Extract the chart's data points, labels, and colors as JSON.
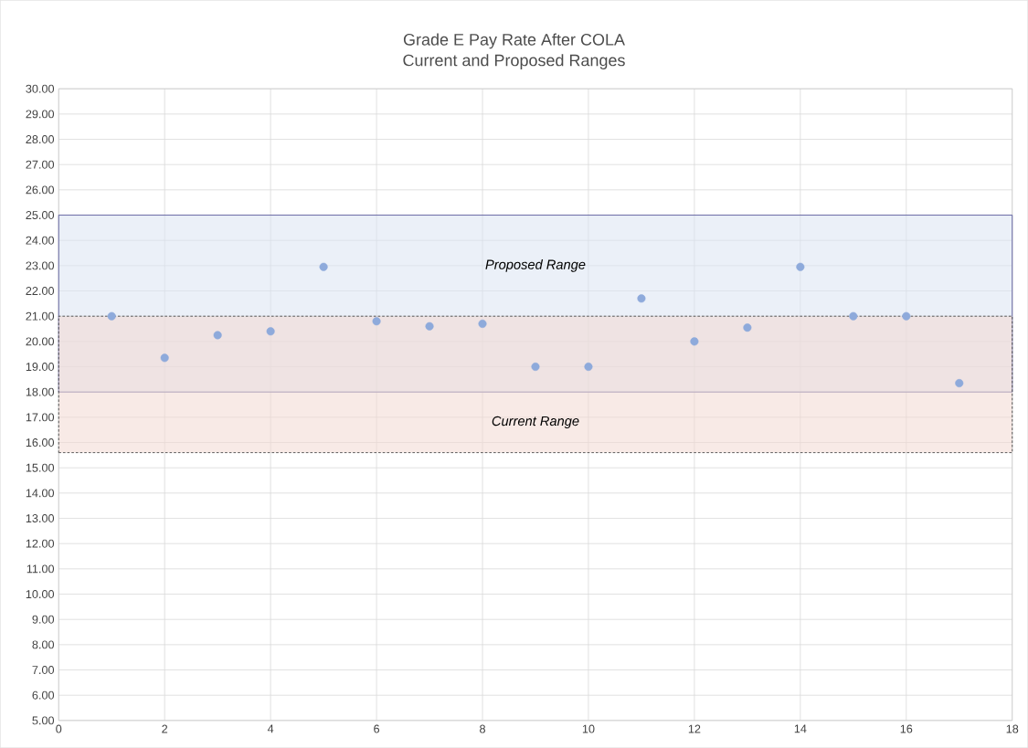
{
  "chart_data": {
    "type": "scatter",
    "title": "Grade E Pay Rate After COLA",
    "subtitle": "Current and Proposed Ranges",
    "x": [
      1,
      2,
      3,
      4,
      5,
      6,
      7,
      8,
      9,
      10,
      11,
      12,
      13,
      14,
      15,
      16,
      17
    ],
    "values": [
      21.0,
      19.35,
      20.25,
      20.4,
      22.95,
      20.8,
      20.6,
      20.7,
      19.0,
      19.0,
      21.7,
      20.0,
      20.55,
      22.95,
      21.0,
      21.0,
      18.35
    ],
    "color": "#8eaadb",
    "marker": "circle",
    "xlim": [
      0,
      18
    ],
    "ylim": [
      5,
      30
    ],
    "xticks": [
      0,
      2,
      4,
      6,
      8,
      10,
      12,
      14,
      16,
      18
    ],
    "yticks": [
      {
        "value": 5,
        "label": "5.00"
      },
      {
        "value": 6,
        "label": "6.00"
      },
      {
        "value": 7,
        "label": "7.00"
      },
      {
        "value": 8,
        "label": "8.00"
      },
      {
        "value": 9,
        "label": "9.00"
      },
      {
        "value": 10,
        "label": "10.00"
      },
      {
        "value": 11,
        "label": "11.00"
      },
      {
        "value": 12,
        "label": "12.00"
      },
      {
        "value": 13,
        "label": "13.00"
      },
      {
        "value": 14,
        "label": "14.00"
      },
      {
        "value": 15,
        "label": "15.00"
      },
      {
        "value": 16,
        "label": "16.00"
      },
      {
        "value": 17,
        "label": "17.00"
      },
      {
        "value": 18,
        "label": "18.00"
      },
      {
        "value": 19,
        "label": "19.00"
      },
      {
        "value": 20,
        "label": "20.00"
      },
      {
        "value": 21,
        "label": "21.00"
      },
      {
        "value": 22,
        "label": "22.00"
      },
      {
        "value": 23,
        "label": "23.00"
      },
      {
        "value": 24,
        "label": "24.00"
      },
      {
        "value": 25,
        "label": "25.00"
      },
      {
        "value": 26,
        "label": "26.00"
      },
      {
        "value": 27,
        "label": "27.00"
      },
      {
        "value": 28,
        "label": "28.00"
      },
      {
        "value": 29,
        "label": "29.00"
      },
      {
        "value": 30,
        "label": "30.00"
      }
    ],
    "grid": true,
    "bands": [
      {
        "axis": "y",
        "from": 18,
        "to": 25,
        "label": "*Proposed Range*",
        "color": "#dae3f3"
      },
      {
        "axis": "y",
        "from": 15.6,
        "to": 21,
        "label": "*Current Range*",
        "color": "#f2d9d2"
      }
    ]
  }
}
